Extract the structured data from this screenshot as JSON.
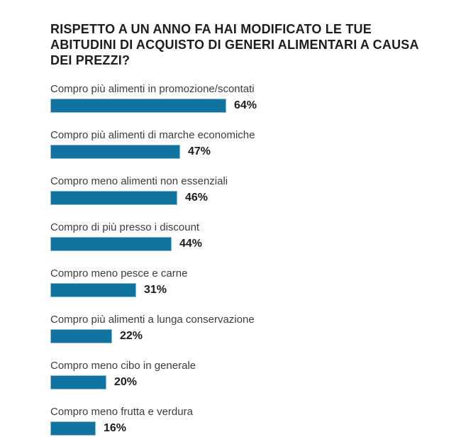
{
  "chart_data": {
    "type": "bar",
    "orientation": "horizontal",
    "title": "RISPETTO A UN ANNO FA HAI MODIFICATO LE TUE ABITUDINI DI ACQUISTO DI GENERI ALIMENTARI A CAUSA DEI PREZZI?",
    "categories": [
      "Compro più alimenti in promozione/scontati",
      "Compro più alimenti di marche economiche",
      "Compro meno alimenti non essenziali",
      "Compro di più presso i discount",
      "Compro meno pesce e carne",
      "Compro più alimenti a lunga conservazione",
      "Compro meno cibo in generale",
      "Compro meno frutta e verdura"
    ],
    "values": [
      64,
      47,
      46,
      44,
      31,
      22,
      20,
      16
    ],
    "value_suffix": "%",
    "xlim": [
      0,
      100
    ],
    "grid": false,
    "legend": false,
    "bar_color": "#1173a0",
    "bar_border_color": "#8cb8d0",
    "title_color": "#1d1d1b",
    "label_color": "#3c3c3b",
    "value_color": "#1d1d1b",
    "background_color": "#ffffff"
  }
}
